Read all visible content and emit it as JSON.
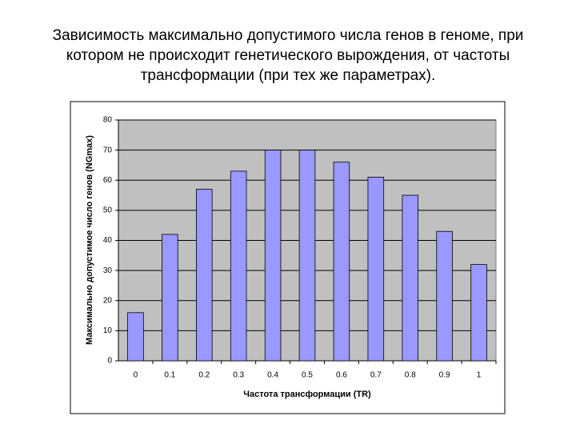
{
  "chart_data": {
    "type": "bar",
    "title": [
      "Зависимость максимально допустимого числа генов в геноме, при",
      "котором не происходит генетического вырождения, от частоты",
      "трансформации (при тех же параметрах)."
    ],
    "x_label": "Частота трансформации (TR)",
    "y_label": "Максимально допустимое число генов (NGmax)",
    "categories": [
      "0",
      "0.1",
      "0.2",
      "0.3",
      "0.4",
      "0.5",
      "0.6",
      "0.7",
      "0.8",
      "0.9",
      "1"
    ],
    "values": [
      16,
      42,
      57,
      63,
      70,
      70,
      66,
      61,
      55,
      43,
      32
    ],
    "color": "#9999ff",
    "ylim": [
      0,
      80
    ],
    "yticks": [
      0,
      10,
      20,
      30,
      40,
      50,
      60,
      70,
      80
    ],
    "grid": true
  }
}
